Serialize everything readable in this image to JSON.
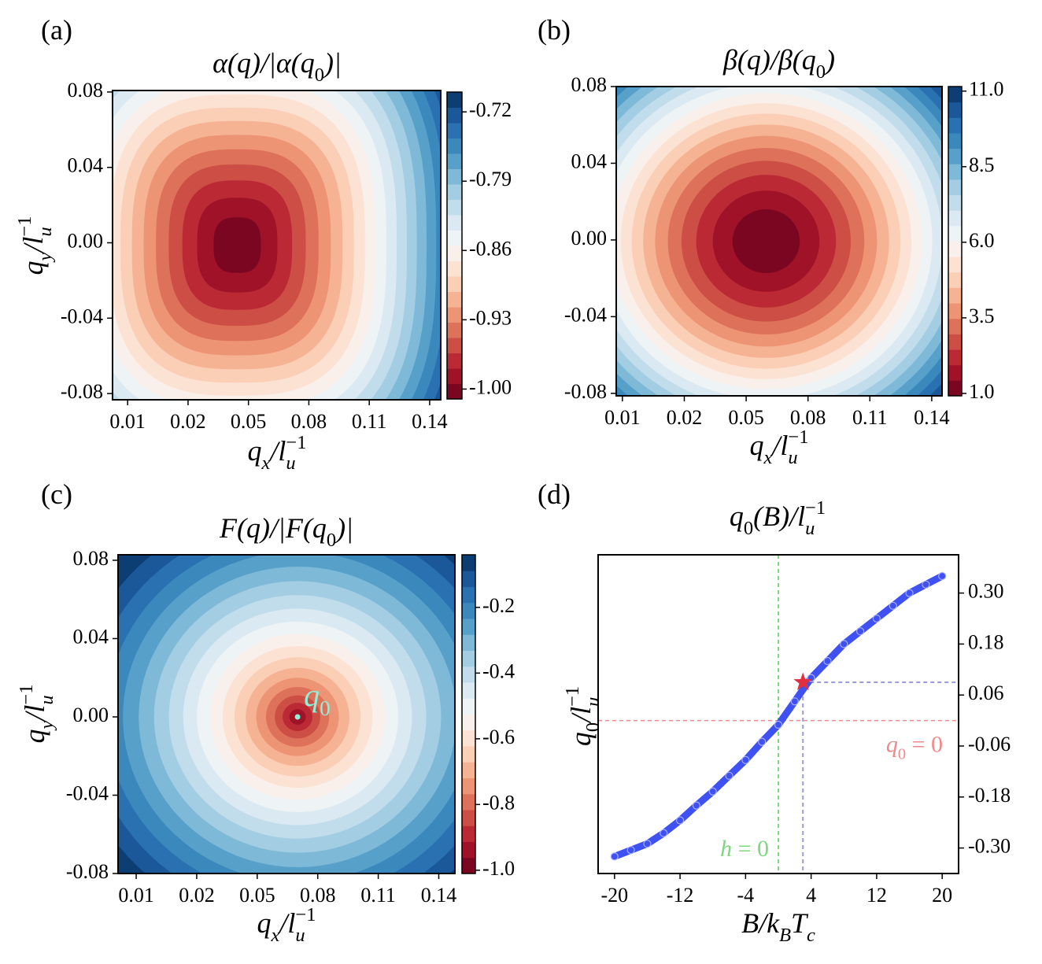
{
  "chart_data": [
    {
      "type": "contour",
      "label": "(a)",
      "title": [
        {
          "text": "α(q)/|α(q",
          "style": "italic"
        },
        {
          "text": "0",
          "style": "sub"
        },
        {
          "text": ")|",
          "style": "italic"
        }
      ],
      "xlabel": [
        {
          "text": "q",
          "style": "italic"
        },
        {
          "text": "x",
          "style": "isub"
        },
        {
          "text": "/l",
          "style": "italic"
        },
        {
          "text": "u",
          "style": "isub"
        },
        {
          "text": "−1",
          "style": "sup"
        }
      ],
      "ylabel": [
        {
          "text": "q",
          "style": "italic"
        },
        {
          "text": "y",
          "style": "isub"
        },
        {
          "text": "/l",
          "style": "italic"
        },
        {
          "text": "u",
          "style": "isub"
        },
        {
          "text": "−1",
          "style": "sup"
        }
      ],
      "xlim": [
        0.0075,
        0.1455
      ],
      "ylim": [
        -0.0833,
        0.0808
      ],
      "xticks": [
        0.01,
        0.02,
        0.05,
        0.08,
        0.11,
        0.14
      ],
      "yticks": [
        0.08,
        0.04,
        {
          "value": 0,
          "label": "0.00"
        },
        -0.04,
        -0.08
      ],
      "colorbar": {
        "cmap": "RdBu_r",
        "levels": 20,
        "lim": [
          -1.01,
          -0.7
        ],
        "ticks": [
          -0.72,
          -0.79,
          -0.86,
          -0.93,
          {
            "value": -1,
            "label": "-1.00"
          }
        ]
      }
    },
    {
      "type": "contour",
      "label": "(b)",
      "title": [
        {
          "text": "β(q)/β(q",
          "style": "italic"
        },
        {
          "text": "0",
          "style": "sub"
        },
        {
          "text": ")",
          "style": "italic"
        }
      ],
      "xlabel": [
        {
          "text": "q",
          "style": "italic"
        },
        {
          "text": "x",
          "style": "isub"
        },
        {
          "text": "/l",
          "style": "italic"
        },
        {
          "text": "u",
          "style": "isub"
        },
        {
          "text": "−1",
          "style": "sup"
        }
      ],
      "xlim": [
        0.009,
        0.145
      ],
      "ylim": [
        -0.0813,
        0.08
      ],
      "xticks": [
        0.01,
        0.02,
        0.05,
        0.08,
        0.11,
        0.14
      ],
      "yticks": [
        0.08,
        0.04,
        {
          "value": 0,
          "label": "0.00"
        },
        -0.04,
        -0.08
      ],
      "colorbar": {
        "cmap": "RdBu_r",
        "levels": 20,
        "lim": [
          0.92,
          11.15
        ],
        "ticks": [
          {
            "value": 11,
            "label": "11.0"
          },
          8.5,
          {
            "value": 6,
            "label": "6.0"
          },
          3.5,
          {
            "value": 1,
            "label": "1.0"
          }
        ]
      }
    },
    {
      "type": "contour",
      "label": "(c)",
      "title": [
        {
          "text": "F(q)/|F(q",
          "style": "italic"
        },
        {
          "text": "0",
          "style": "sub"
        },
        {
          "text": ")|",
          "style": "italic"
        }
      ],
      "xlabel": [
        {
          "text": "q",
          "style": "italic"
        },
        {
          "text": "x",
          "style": "isub"
        },
        {
          "text": "/l",
          "style": "italic"
        },
        {
          "text": "u",
          "style": "isub"
        },
        {
          "text": "−1",
          "style": "sup"
        }
      ],
      "ylabel": [
        {
          "text": "q",
          "style": "italic"
        },
        {
          "text": "y",
          "style": "isub"
        },
        {
          "text": "/l",
          "style": "italic"
        },
        {
          "text": "u",
          "style": "isub"
        },
        {
          "text": "−1",
          "style": "sup"
        }
      ],
      "xlim": [
        0.007,
        0.148
      ],
      "ylim": [
        -0.08,
        0.0828
      ],
      "xticks": [
        0.01,
        0.02,
        0.05,
        0.08,
        0.11,
        0.14
      ],
      "yticks": [
        0.08,
        0.04,
        {
          "value": 0,
          "label": "0.00"
        },
        -0.04,
        -0.08
      ],
      "colorbar": {
        "cmap": "RdBu_r",
        "levels": 20,
        "lim": [
          -1.01,
          -0.04
        ],
        "ticks": [
          -0.2,
          -0.4,
          -0.6,
          -0.8,
          {
            "value": -1,
            "label": "-1.0"
          }
        ]
      },
      "point": {
        "x": 0.07,
        "y": 0.0,
        "color": "#8ef0d8",
        "label": [
          {
            "text": "q",
            "style": "italic"
          },
          {
            "text": "0",
            "style": "sub"
          }
        ]
      }
    },
    {
      "type": "line",
      "label": "(d)",
      "title": [
        {
          "text": "q",
          "style": "italic"
        },
        {
          "text": "0",
          "style": "sub"
        },
        {
          "text": "(B)/l",
          "style": "italic"
        },
        {
          "text": "u",
          "style": "isub"
        },
        {
          "text": "−1",
          "style": "sup"
        }
      ],
      "xlabel": [
        {
          "text": "B/k",
          "style": "italic"
        },
        {
          "text": "B",
          "style": "isub"
        },
        {
          "text": "T",
          "style": "italic"
        },
        {
          "text": "c",
          "style": "isub"
        }
      ],
      "ylabel": [
        {
          "text": "q",
          "style": "italic"
        },
        {
          "text": "0",
          "style": "sub"
        },
        {
          "text": "/l",
          "style": "italic"
        },
        {
          "text": "u",
          "style": "isub"
        },
        {
          "text": "−1",
          "style": "sup"
        }
      ],
      "xlim": [
        -22,
        22
      ],
      "ylim": [
        -0.36,
        0.39
      ],
      "xticks": [
        -20,
        -12,
        -4,
        4,
        12,
        20
      ],
      "yticks": [
        {
          "value": 0.3,
          "label": "0.30"
        },
        0.18,
        0.06,
        -0.06,
        -0.18,
        {
          "value": -0.3,
          "label": "-0.30"
        }
      ],
      "yaxis": "right",
      "color": "#3f51f2",
      "x": [
        -20,
        -18,
        -16,
        -14,
        -12,
        -10,
        -8,
        -6,
        -4,
        -2,
        0,
        2,
        4,
        6,
        8,
        10,
        12,
        14,
        16,
        18,
        20
      ],
      "values": [
        -0.32,
        -0.305,
        -0.29,
        -0.265,
        -0.235,
        -0.2,
        -0.167,
        -0.13,
        -0.093,
        -0.05,
        -0.01,
        0.045,
        0.1,
        0.14,
        0.18,
        0.21,
        0.24,
        0.27,
        0.3,
        0.32,
        0.34
      ],
      "vline": {
        "x": 0,
        "color": "#7ed87e",
        "label": [
          {
            "text": "h",
            "style": "italic"
          },
          {
            "text": " = 0",
            "style": "normal"
          }
        ]
      },
      "hline": {
        "y": 0,
        "color": "#f08a8a",
        "label": [
          {
            "text": "q",
            "style": "italic"
          },
          {
            "text": "0",
            "style": "sub"
          },
          {
            "text": " = 0",
            "style": "normal"
          }
        ]
      },
      "star": {
        "x": 3,
        "y": 0.09,
        "color": "#e0303f",
        "guide_color": "#9b9bd8"
      }
    }
  ]
}
